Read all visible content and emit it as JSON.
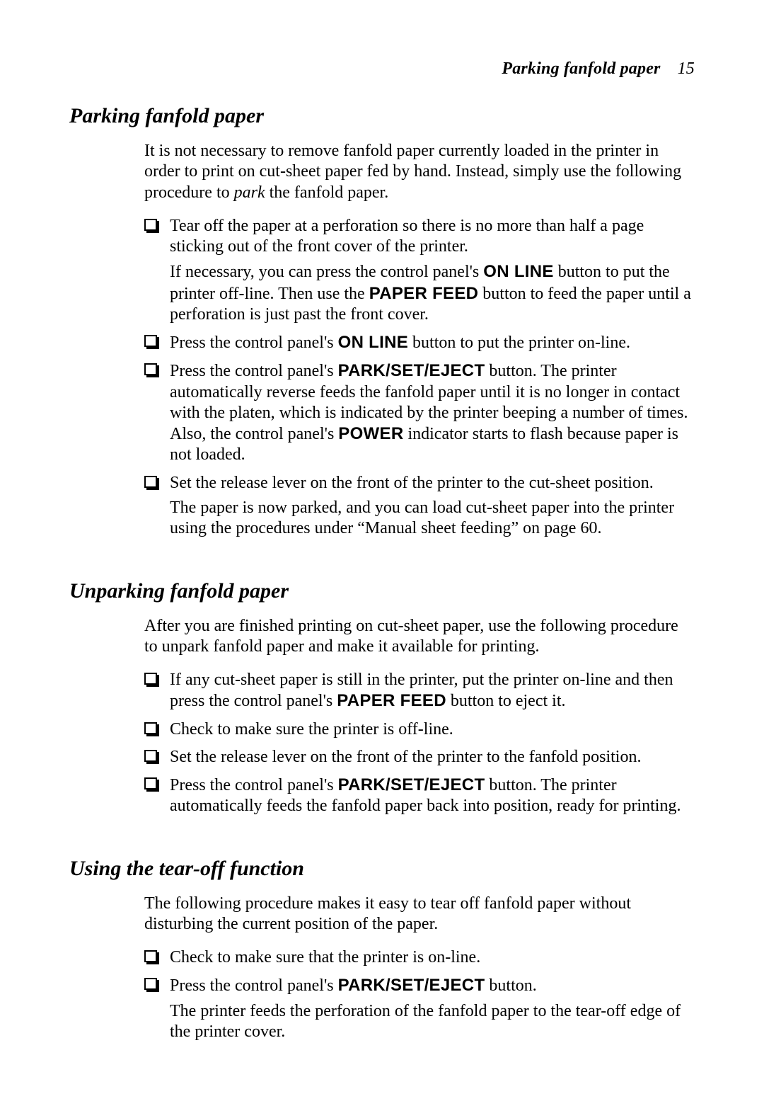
{
  "header": {
    "running_title": "Parking fanfold paper",
    "page_number": "15"
  },
  "typography": {
    "body_font": "Times New Roman",
    "body_size_pt": 18,
    "heading_size_pt": 22,
    "heading_style": "bold italic",
    "control_label_font": "Arial",
    "text_color": "#000000",
    "background_color": "#ffffff"
  },
  "sections": [
    {
      "title": "Parking fanfold paper",
      "intro_html": "It is not necessary to remove fanfold paper currently loaded in the printer in order to print on cut-sheet paper fed by hand. Instead, simply use the following procedure to <span class=\"italic\">park</span> the fanfold paper.",
      "items": [
        {
          "html": "Tear off the paper at a perforation so there is no more than half a page sticking out of the front cover of the printer.",
          "follow_html": "If necessary, you can press the control panel's <span class=\"bold-sans\">ON LINE</span> button to put the printer off-line. Then use the <span class=\"bold-sans\">PAPER FEED</span> button to feed the paper until a perforation is just past the front cover."
        },
        {
          "html": "Press the control panel's <span class=\"bold-sans\">ON LINE</span> button to put the printer on-line."
        },
        {
          "html": "Press the control panel's <span class=\"bold-sans\">PARK/SET/EJECT</span> button. The printer automatically reverse feeds the fanfold paper until it is no longer in contact with the platen, which is indicated by the printer beeping a number of times. Also, the control panel's <span class=\"bold-sans\">POWER</span> indicator starts to flash because paper is not loaded."
        },
        {
          "html": "Set the release lever on the front of the printer to the cut-sheet position.",
          "follow_html": "The paper is now parked, and you can load cut-sheet paper into the printer using the procedures under “Manual sheet feeding” on page 60."
        }
      ]
    },
    {
      "title": "Unparking fanfold paper",
      "intro_html": "After you are finished printing on cut-sheet paper, use the following procedure to unpark fanfold paper and make it available for printing.",
      "items": [
        {
          "html": "If any cut-sheet paper is still in the printer, put the printer on-line and then press the control panel's <span class=\"bold-sans\">PAPER FEED</span> button to eject it."
        },
        {
          "html": "Check to make sure the printer is off-line."
        },
        {
          "html": "Set the release lever on the front of the printer to the fanfold position."
        },
        {
          "html": "Press the control panel's <span class=\"bold-sans\">PARK/SET/EJECT</span> button. The printer automatically feeds the fanfold paper back into position, ready for printing."
        }
      ]
    },
    {
      "title": "Using the tear-off function",
      "intro_html": "The following procedure makes it easy to tear off fanfold paper without disturbing the current position of the paper.",
      "items": [
        {
          "html": "Check to make sure that the printer is on-line."
        },
        {
          "html": "Press the control panel's <span class=\"bold-sans\">PARK/SET/EJECT</span> button.",
          "follow_html": "The printer feeds the perforation of the fanfold paper to the tear-off edge of the printer cover."
        }
      ]
    }
  ]
}
